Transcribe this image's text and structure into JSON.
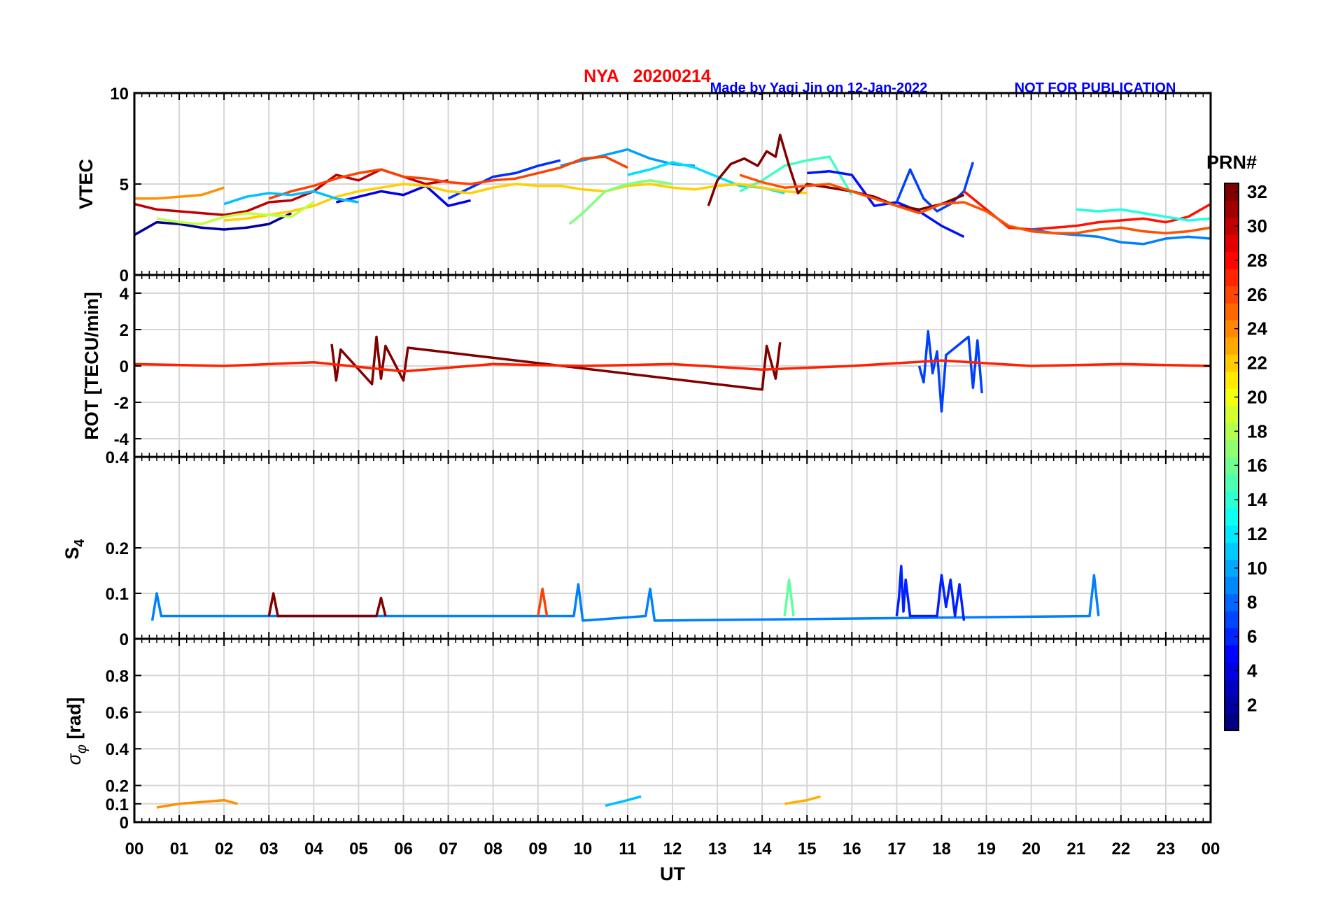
{
  "figure": {
    "station_title": "NYA   20200214",
    "credit": "Made by Yaqi Jin on 12-Jan-2022",
    "notice": "NOT FOR PUBLICATION",
    "title_color": "#ff0000",
    "credit_color": "#0000ff"
  },
  "colorbar": {
    "title": "PRN#",
    "min": 1,
    "max": 32,
    "ticks": [
      "2",
      "4",
      "6",
      "8",
      "10",
      "12",
      "14",
      "16",
      "18",
      "20",
      "22",
      "24",
      "26",
      "28",
      "30",
      "32"
    ],
    "colormap": "jet"
  },
  "chart_data": [
    {
      "type": "line",
      "panel": "vtec",
      "ylabel": "VTEC",
      "ylim": [
        0,
        10
      ],
      "yticks": [
        "0",
        "5",
        "10"
      ],
      "xlim": [
        0,
        24
      ],
      "grid": true,
      "series": [
        {
          "prn": 2,
          "color": "#00009f",
          "x": [
            0.0,
            0.5,
            1.0,
            1.5,
            2.0,
            2.5,
            3.0,
            3.5
          ],
          "values": [
            2.2,
            2.9,
            2.8,
            2.6,
            2.5,
            2.6,
            2.8,
            3.4
          ]
        },
        {
          "prn": 5,
          "color": "#0000ef",
          "x": [
            4.5,
            5.0,
            5.5,
            6.0,
            6.5,
            7.0,
            7.5
          ],
          "values": [
            4.0,
            4.3,
            4.6,
            4.4,
            4.9,
            3.8,
            4.1
          ]
        },
        {
          "prn": 9,
          "color": "#0030ff",
          "x": [
            7.0,
            7.5,
            8.0,
            8.5,
            9.0,
            9.5
          ],
          "values": [
            4.2,
            4.8,
            5.4,
            5.6,
            6.0,
            6.3
          ]
        },
        {
          "prn": 11,
          "color": "#00a0ff",
          "x": [
            9.5,
            10.0,
            10.5,
            11.0,
            11.5,
            12.0,
            12.5
          ],
          "values": [
            6.0,
            6.3,
            6.6,
            6.9,
            6.4,
            6.1,
            6.0
          ]
        },
        {
          "prn": 13,
          "color": "#00e0ff",
          "x": [
            11.0,
            11.5,
            12.0,
            12.5,
            13.0,
            13.5,
            14.0,
            14.5
          ],
          "values": [
            5.5,
            5.8,
            6.2,
            5.9,
            5.4,
            4.9,
            4.8,
            4.5
          ]
        },
        {
          "prn": 15,
          "color": "#40ffbf",
          "x": [
            13.5,
            14.0,
            14.5,
            15.0,
            15.5,
            16.0
          ],
          "values": [
            4.6,
            5.2,
            6.0,
            6.3,
            6.5,
            4.4
          ]
        },
        {
          "prn": 4,
          "color": "#0010ff",
          "x": [
            15.0,
            15.5,
            16.0,
            16.5,
            17.0,
            17.5,
            18.0,
            18.5
          ],
          "values": [
            5.6,
            5.7,
            5.5,
            3.8,
            4.0,
            3.5,
            2.7,
            2.1
          ]
        },
        {
          "prn": 6,
          "color": "#0040ff",
          "x": [
            17.0,
            17.3,
            17.6,
            17.9,
            18.2,
            18.5,
            18.7
          ],
          "values": [
            4.0,
            5.8,
            4.2,
            3.5,
            3.9,
            4.6,
            6.2
          ]
        },
        {
          "prn": 29,
          "color": "#ff1000",
          "x": [
            18.5,
            19.0,
            19.5,
            20.0,
            20.5,
            21.0,
            21.5,
            22.0,
            22.5,
            23.0,
            23.5,
            24.0
          ],
          "values": [
            4.6,
            3.6,
            2.6,
            2.5,
            2.6,
            2.7,
            2.9,
            3.0,
            3.1,
            2.9,
            3.2,
            3.9
          ]
        },
        {
          "prn": 10,
          "color": "#0080ff",
          "x": [
            20.0,
            20.5,
            21.0,
            21.5,
            22.0,
            22.5,
            23.0,
            23.5,
            24.0
          ],
          "values": [
            2.5,
            2.3,
            2.2,
            2.1,
            1.8,
            1.7,
            2.0,
            2.1,
            2.0
          ]
        },
        {
          "prn": 14,
          "color": "#20ffdf",
          "x": [
            21.0,
            21.5,
            22.0,
            22.5,
            23.0,
            23.5,
            24.0
          ],
          "values": [
            3.6,
            3.5,
            3.6,
            3.4,
            3.2,
            3.0,
            3.1
          ]
        },
        {
          "prn": 24,
          "color": "#ff9000",
          "x": [
            0.0,
            0.5,
            1.0,
            1.5,
            2.0
          ],
          "values": [
            4.2,
            4.2,
            4.3,
            4.4,
            4.8
          ]
        },
        {
          "prn": 31,
          "color": "#bf0000",
          "x": [
            0.0,
            0.5,
            1.0,
            1.5,
            2.0,
            2.5,
            3.0,
            3.5,
            4.0,
            4.5,
            5.0,
            5.5,
            6.0,
            6.5,
            7.0
          ],
          "values": [
            3.9,
            3.6,
            3.5,
            3.4,
            3.3,
            3.5,
            4.0,
            4.1,
            4.6,
            5.5,
            5.2,
            5.8,
            5.4,
            5.0,
            5.2
          ]
        },
        {
          "prn": 27,
          "color": "#ff4000",
          "x": [
            3.0,
            3.5,
            4.0,
            4.5,
            5.0,
            5.5,
            6.0,
            6.5,
            7.0,
            7.5,
            8.0,
            8.5,
            9.0,
            9.5,
            10.0,
            10.5,
            11.0
          ],
          "values": [
            4.2,
            4.6,
            4.9,
            5.3,
            5.6,
            5.8,
            5.4,
            5.3,
            5.1,
            5.0,
            5.2,
            5.3,
            5.6,
            5.9,
            6.4,
            6.5,
            5.9
          ]
        },
        {
          "prn": 22,
          "color": "#ffd000",
          "x": [
            2.0,
            2.5,
            3.0,
            3.5,
            4.0,
            4.5,
            5.0,
            5.5,
            6.0,
            6.5,
            7.0,
            7.5,
            8.0,
            8.5,
            9.0,
            9.5,
            10.0,
            10.5,
            11.0,
            11.5,
            12.0,
            12.5,
            13.0,
            13.5,
            14.0,
            14.5,
            15.0
          ],
          "values": [
            3.0,
            3.1,
            3.3,
            3.5,
            3.8,
            4.3,
            4.6,
            4.8,
            5.0,
            4.9,
            4.6,
            4.5,
            4.8,
            5.0,
            4.9,
            4.9,
            4.7,
            4.6,
            4.9,
            5.0,
            4.8,
            4.7,
            4.9,
            5.0,
            4.8,
            4.6,
            4.5
          ]
        },
        {
          "prn": 32,
          "color": "#800000",
          "x": [
            12.8,
            13.0,
            13.3,
            13.6,
            13.9,
            14.1,
            14.3,
            14.4,
            14.6,
            14.8,
            15.0,
            15.5,
            16.0,
            16.5,
            17.0,
            17.5,
            18.0,
            18.5
          ],
          "values": [
            3.8,
            5.2,
            6.1,
            6.4,
            6.0,
            6.8,
            6.5,
            7.7,
            6.0,
            4.5,
            5.0,
            4.8,
            4.6,
            4.3,
            3.8,
            3.6,
            3.9,
            4.4
          ]
        },
        {
          "prn": 26,
          "color": "#ff5000",
          "x": [
            13.5,
            14.0,
            14.5,
            15.0,
            15.5,
            16.0,
            16.5,
            17.0,
            17.5,
            18.0,
            18.5,
            19.0,
            19.5,
            20.0,
            20.5,
            21.0,
            21.5,
            22.0,
            22.5,
            23.0,
            23.5,
            24.0
          ],
          "values": [
            5.5,
            5.1,
            4.8,
            4.9,
            5.0,
            4.6,
            4.2,
            3.8,
            3.4,
            3.9,
            4.0,
            3.5,
            2.7,
            2.4,
            2.3,
            2.3,
            2.5,
            2.6,
            2.4,
            2.3,
            2.4,
            2.6
          ]
        },
        {
          "prn": 17,
          "color": "#80ff80",
          "x": [
            9.7,
            10.0,
            10.5,
            11.0,
            11.5,
            12.0
          ],
          "values": [
            2.8,
            3.4,
            4.6,
            5.0,
            5.2,
            5.0
          ]
        },
        {
          "prn": 19,
          "color": "#c0ff40",
          "x": [
            0.5,
            1.0,
            1.5,
            2.0,
            2.5,
            3.0,
            3.5,
            4.0
          ],
          "values": [
            3.1,
            2.9,
            2.8,
            3.2,
            3.4,
            3.3,
            3.2,
            4.0
          ]
        },
        {
          "prn": 12,
          "color": "#00c0ff",
          "x": [
            2.0,
            2.5,
            3.0,
            3.5,
            4.0,
            4.5,
            5.0
          ],
          "values": [
            3.9,
            4.3,
            4.5,
            4.4,
            4.6,
            4.2,
            4.0
          ]
        }
      ]
    },
    {
      "type": "line",
      "panel": "rot",
      "ylabel": "ROT [TECU/min]",
      "ylim": [
        -5,
        5
      ],
      "yticks": [
        "-4",
        "-2",
        "0",
        "2",
        "4"
      ],
      "xlim": [
        0,
        24
      ],
      "grid": true,
      "series": [
        {
          "prn": 6,
          "color": "#0040ff",
          "x": [
            17.5,
            17.6,
            17.7,
            17.8,
            17.9,
            18.0,
            18.1,
            18.6,
            18.7,
            18.8,
            18.9
          ],
          "values": [
            0.0,
            -0.9,
            1.9,
            -0.4,
            0.8,
            -2.5,
            0.6,
            1.6,
            -1.2,
            1.4,
            -1.5
          ]
        },
        {
          "prn": 32,
          "color": "#800000",
          "x": [
            4.4,
            4.5,
            4.6,
            5.3,
            5.4,
            5.5,
            5.6,
            6.0,
            6.1,
            14.0,
            14.1,
            14.3,
            14.4
          ],
          "values": [
            1.2,
            -0.8,
            0.9,
            -1.0,
            1.6,
            -0.7,
            1.1,
            -0.8,
            1.0,
            -1.3,
            1.1,
            -0.7,
            1.3
          ]
        },
        {
          "prn": 28,
          "color": "#ff2000",
          "x": [
            0.0,
            2.0,
            4.0,
            6.0,
            8.0,
            10.0,
            12.0,
            14.0,
            16.0,
            18.0,
            20.0,
            22.0,
            24.0
          ],
          "values": [
            0.1,
            0.0,
            0.2,
            -0.3,
            0.1,
            0.0,
            0.1,
            -0.2,
            0.0,
            0.3,
            0.0,
            0.1,
            0.0
          ]
        }
      ]
    },
    {
      "type": "line",
      "panel": "s4",
      "ylabel": "S4",
      "ylim": [
        0,
        0.4
      ],
      "yticks": [
        "0",
        "0.1",
        "0.2",
        "0.4"
      ],
      "xlim": [
        0,
        24
      ],
      "grid": true,
      "series": [
        {
          "prn": 10,
          "color": "#0080ff",
          "x": [
            0.4,
            0.5,
            0.6,
            9.8,
            9.9,
            10.0,
            11.4,
            11.5,
            11.6,
            21.3,
            21.4,
            21.5
          ],
          "values": [
            0.04,
            0.1,
            0.05,
            0.05,
            0.12,
            0.04,
            0.05,
            0.11,
            0.04,
            0.05,
            0.14,
            0.05
          ]
        },
        {
          "prn": 3,
          "color": "#0020ff",
          "x": [
            17.0,
            17.05,
            17.1,
            17.15,
            17.2,
            17.3,
            17.9,
            18.0,
            18.1,
            18.2,
            18.3,
            18.4,
            18.5
          ],
          "values": [
            0.05,
            0.09,
            0.16,
            0.06,
            0.13,
            0.05,
            0.05,
            0.14,
            0.07,
            0.13,
            0.05,
            0.12,
            0.04
          ]
        },
        {
          "prn": 16,
          "color": "#60ff9f",
          "x": [
            14.5,
            14.6,
            14.7
          ],
          "values": [
            0.05,
            0.13,
            0.05
          ]
        },
        {
          "prn": 27,
          "color": "#ff4000",
          "x": [
            9.0,
            9.1,
            9.2
          ],
          "values": [
            0.05,
            0.11,
            0.05
          ]
        },
        {
          "prn": 32,
          "color": "#800000",
          "x": [
            3.0,
            3.1,
            3.2,
            5.4,
            5.5,
            5.6
          ],
          "values": [
            0.05,
            0.1,
            0.05,
            0.05,
            0.09,
            0.05
          ]
        }
      ]
    },
    {
      "type": "line",
      "panel": "sigma_phi",
      "ylabel": "σ_φ [rad]",
      "ylim": [
        0,
        1
      ],
      "yticks": [
        "0",
        "0.1",
        "0.2",
        "0.4",
        "0.6",
        "0.8"
      ],
      "xlim": [
        0,
        24
      ],
      "xlabel": "UT",
      "xticks": [
        "00",
        "01",
        "02",
        "03",
        "04",
        "05",
        "06",
        "07",
        "08",
        "09",
        "10",
        "11",
        "12",
        "13",
        "14",
        "15",
        "16",
        "17",
        "18",
        "19",
        "20",
        "21",
        "22",
        "23",
        "00"
      ],
      "grid": true,
      "series": [
        {
          "prn": 24,
          "color": "#ff9000",
          "x": [
            0.5,
            1.0,
            1.5,
            2.0,
            2.3
          ],
          "values": [
            0.08,
            0.1,
            0.11,
            0.12,
            0.1
          ]
        },
        {
          "prn": 23,
          "color": "#ffb000",
          "x": [
            14.5,
            15.0,
            15.3
          ],
          "values": [
            0.1,
            0.12,
            0.14
          ]
        },
        {
          "prn": 12,
          "color": "#00c0ff",
          "x": [
            10.5,
            11.0,
            11.3
          ],
          "values": [
            0.09,
            0.12,
            0.14
          ]
        }
      ]
    }
  ]
}
